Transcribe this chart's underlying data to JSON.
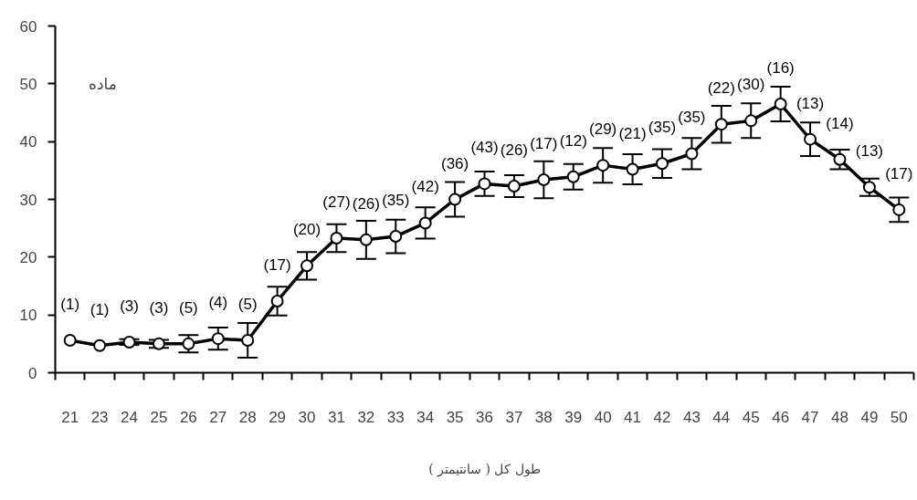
{
  "chart_data": {
    "type": "line",
    "xlabel": "طول کل ( سانتیمتر )",
    "categories": [
      "21",
      "23",
      "24",
      "25",
      "26",
      "27",
      "28",
      "29",
      "30",
      "31",
      "32",
      "33",
      "34",
      "35",
      "36",
      "37",
      "38",
      "39",
      "40",
      "41",
      "42",
      "43",
      "44",
      "45",
      "46",
      "47",
      "48",
      "49",
      "50"
    ],
    "series": [
      {
        "color": "#000000",
        "values": [
          5.6,
          4.7,
          5.3,
          5.0,
          5.0,
          5.9,
          5.6,
          12.4,
          18.5,
          23.3,
          23.0,
          23.6,
          25.9,
          30.0,
          32.7,
          32.3,
          33.4,
          33.9,
          35.9,
          35.2,
          36.2,
          37.9,
          43.0,
          43.6,
          46.5,
          40.4,
          36.9,
          32.1,
          28.2
        ],
        "errors": [
          null,
          null,
          0.5,
          0.7,
          1.5,
          1.9,
          3.0,
          2.5,
          2.4,
          2.4,
          3.3,
          2.9,
          2.7,
          3.0,
          2.1,
          1.9,
          3.2,
          2.2,
          3.0,
          2.6,
          2.5,
          2.7,
          3.2,
          3.0,
          3.0,
          2.9,
          1.7,
          1.5,
          2.1
        ]
      }
    ],
    "ylim": [
      0,
      60
    ],
    "yticks": [
      0,
      10,
      20,
      30,
      40,
      50,
      60
    ],
    "marker": "circle",
    "line_style": "solid",
    "grid": false,
    "annotations": [
      "ماده",
      {
        "text": "(1)",
        "x": "21",
        "y": 5.6
      },
      {
        "text": "(1)",
        "x": "23",
        "y": 4.7
      },
      {
        "text": "(3)",
        "x": "24",
        "y": 5.3
      },
      {
        "text": "(3)",
        "x": "25",
        "y": 5.0
      },
      {
        "text": "(5)",
        "x": "26",
        "y": 5.0
      },
      {
        "text": "(4)",
        "x": "27",
        "y": 5.9
      },
      {
        "text": "(5)",
        "x": "28",
        "y": 5.6
      },
      {
        "text": "(17)",
        "x": "29",
        "y": 12.4
      },
      {
        "text": "(20)",
        "x": "30",
        "y": 18.5
      },
      {
        "text": "(27)",
        "x": "31",
        "y": 23.3
      },
      {
        "text": "(26)",
        "x": "32",
        "y": 23.0
      },
      {
        "text": "(35)",
        "x": "33",
        "y": 23.6
      },
      {
        "text": "(42)",
        "x": "34",
        "y": 25.9
      },
      {
        "text": "(36)",
        "x": "35",
        "y": 30.0
      },
      {
        "text": "(43)",
        "x": "36",
        "y": 32.7
      },
      {
        "text": "(26)",
        "x": "37",
        "y": 32.3
      },
      {
        "text": "(17)",
        "x": "38",
        "y": 33.4
      },
      {
        "text": "(12)",
        "x": "39",
        "y": 33.9
      },
      {
        "text": "(29)",
        "x": "40",
        "y": 35.9
      },
      {
        "text": "(21)",
        "x": "41",
        "y": 35.2
      },
      {
        "text": "(35)",
        "x": "42",
        "y": 36.2
      },
      {
        "text": "(35)",
        "x": "43",
        "y": 37.9
      },
      {
        "text": "(22)",
        "x": "44",
        "y": 43.0
      },
      {
        "text": "(30)",
        "x": "45",
        "y": 43.6
      },
      {
        "text": "(16)",
        "x": "46",
        "y": 46.5
      },
      {
        "text": "(13)",
        "x": "47",
        "y": 40.4
      },
      {
        "text": "(14)",
        "x": "48",
        "y": 36.9
      },
      {
        "text": "(13)",
        "x": "49",
        "y": 32.1
      },
      {
        "text": "(17)",
        "x": "50",
        "y": 28.2
      }
    ]
  }
}
